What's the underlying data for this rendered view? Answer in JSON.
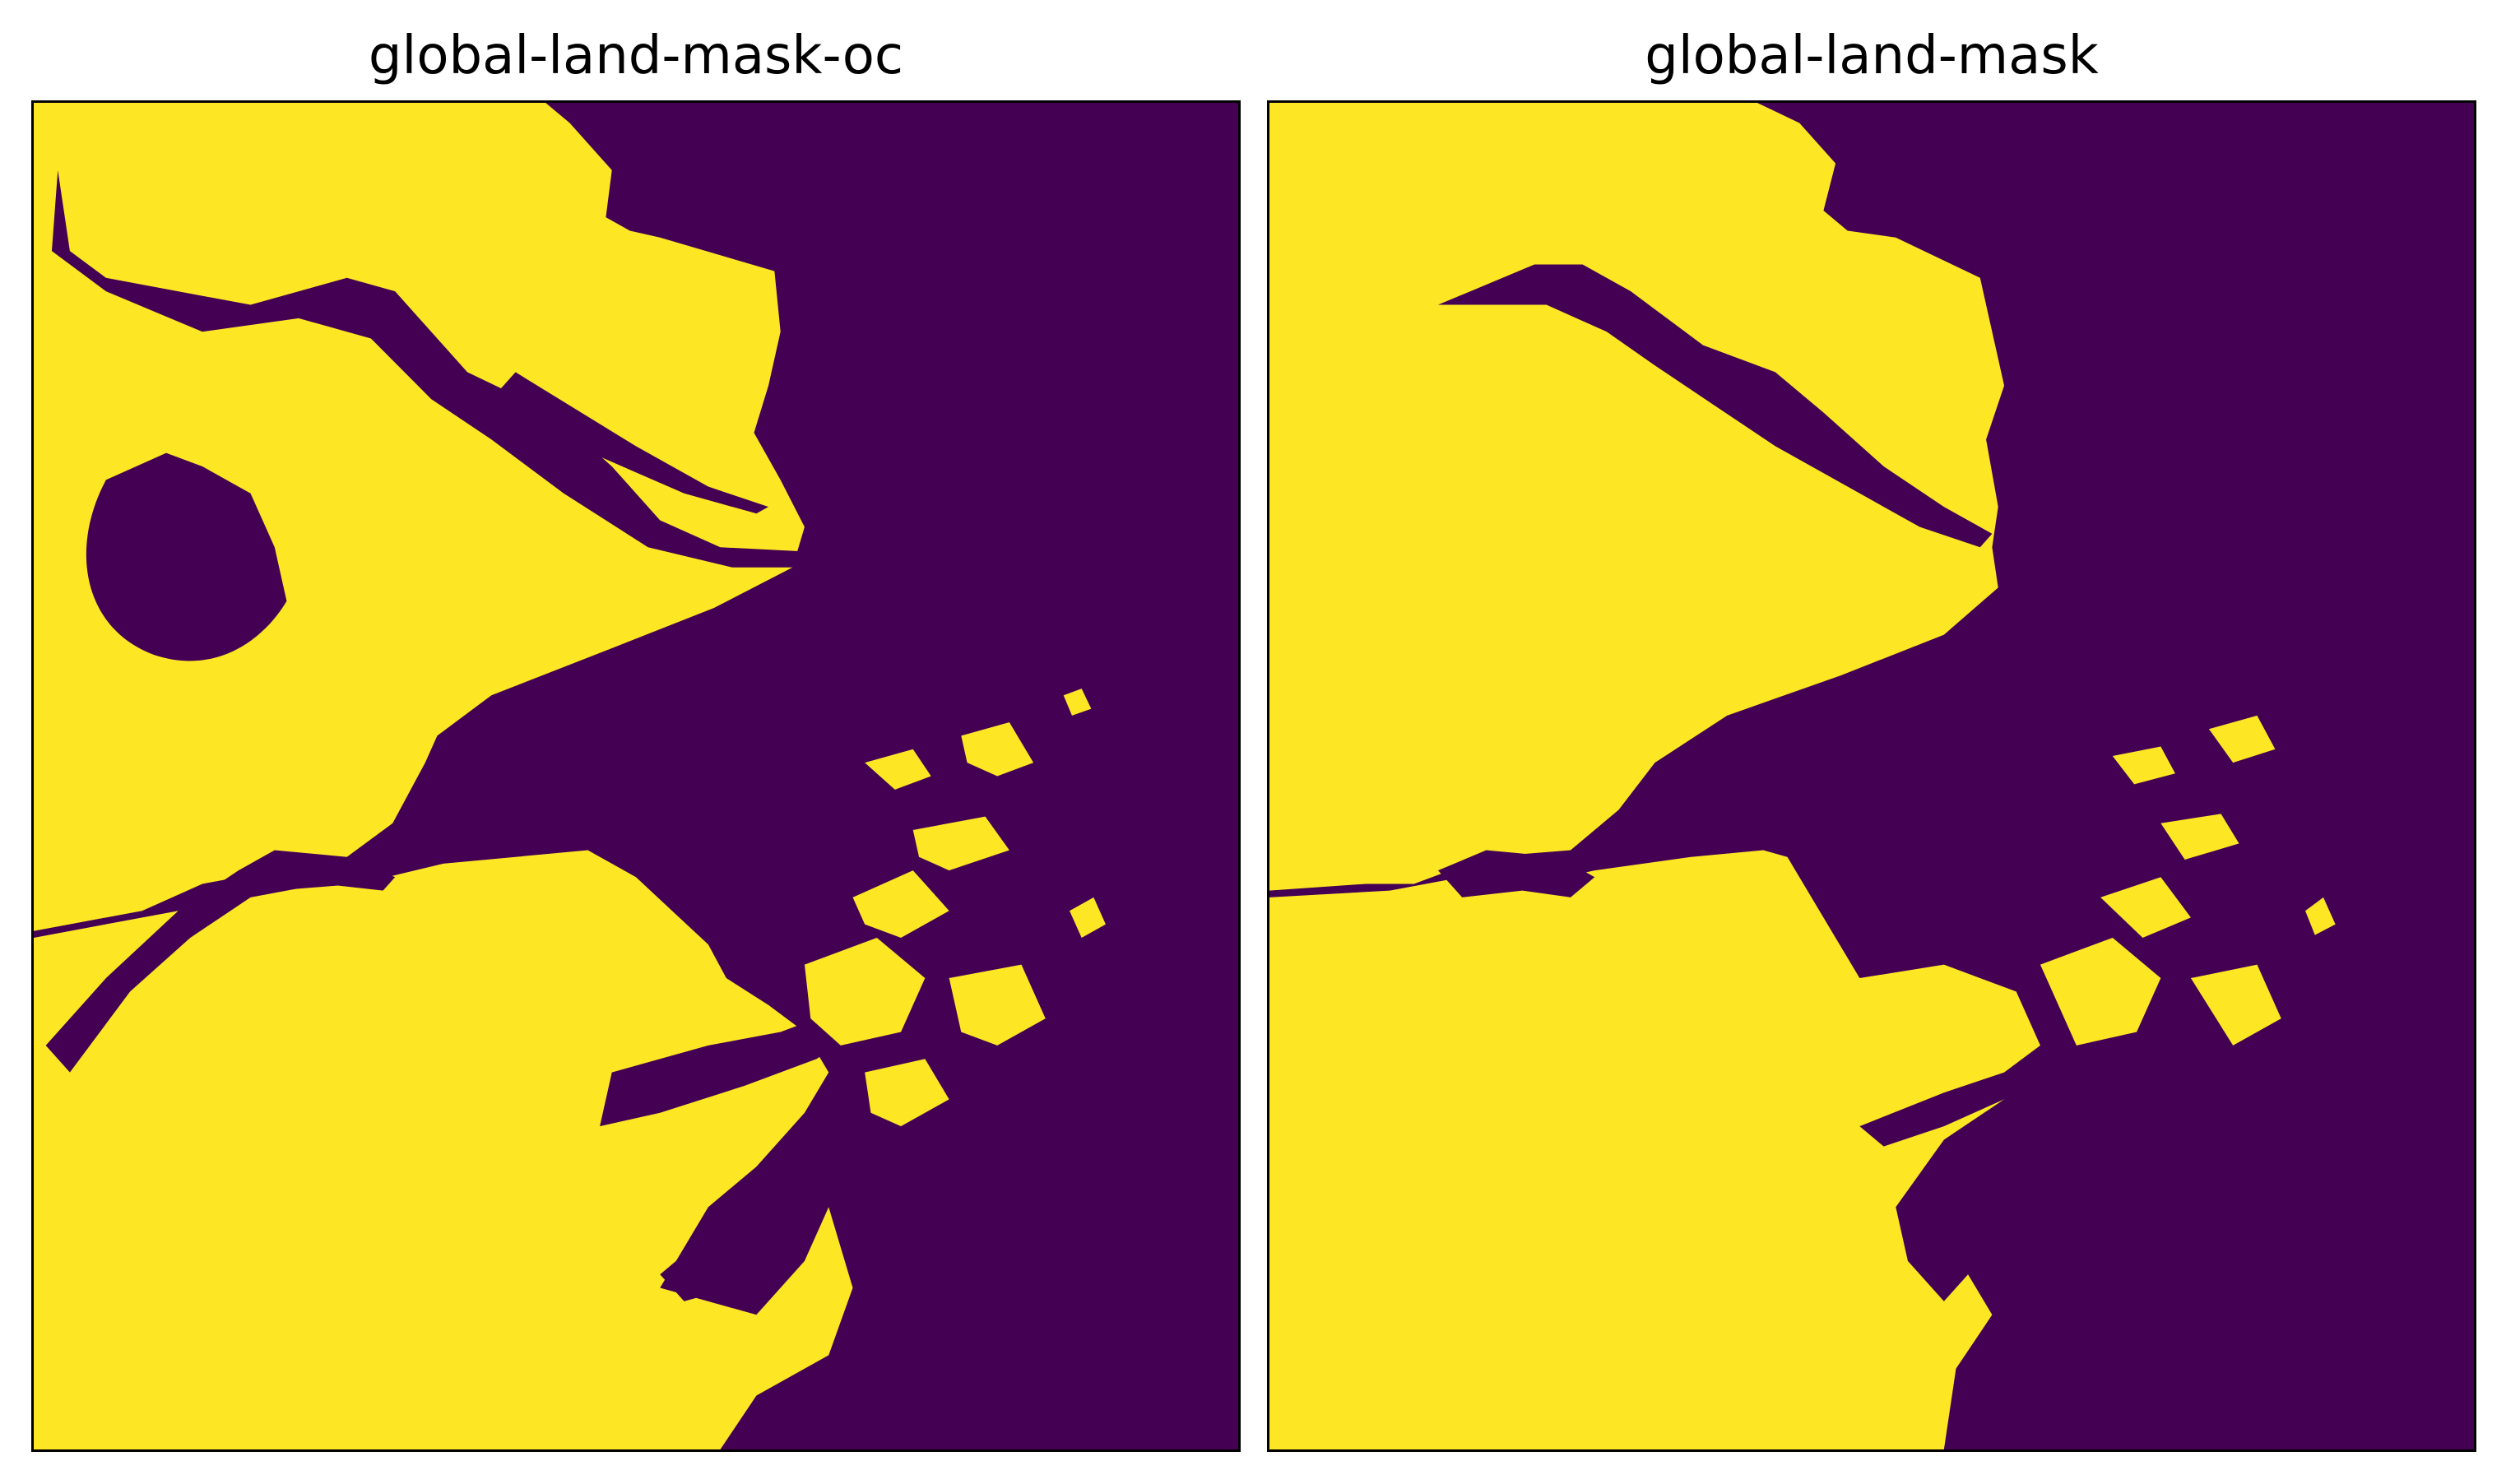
{
  "panels": [
    {
      "title": "global-land-mask-oc",
      "detail": "high"
    },
    {
      "title": "global-land-mask",
      "detail": "coarse"
    }
  ],
  "colors": {
    "land": "#fde725",
    "water": "#440154",
    "frame": "#000000",
    "background": "#ffffff"
  },
  "legend": []
}
